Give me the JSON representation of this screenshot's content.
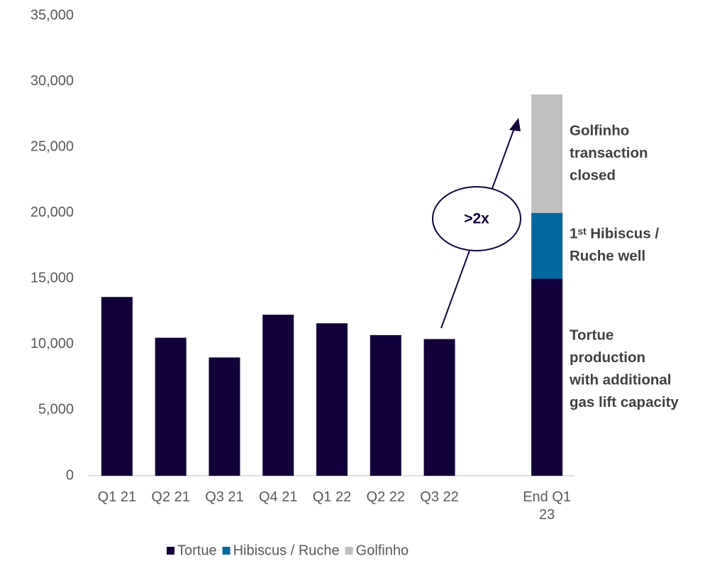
{
  "chart_data": {
    "type": "bar",
    "stacked": true,
    "categories": [
      "Q1 21",
      "Q2 21",
      "Q3 21",
      "Q4 21",
      "Q1 22",
      "Q2 22",
      "Q3 22",
      null,
      "End Q1 23"
    ],
    "series": [
      {
        "name": "Tortue",
        "color": "#12003b",
        "values": [
          13600,
          10500,
          9000,
          12250,
          11600,
          10700,
          10400,
          null,
          15000
        ]
      },
      {
        "name": "Hibiscus / Ruche",
        "color": "#00689f",
        "values": [
          null,
          null,
          null,
          null,
          null,
          null,
          null,
          null,
          5000
        ]
      },
      {
        "name": "Golfinho",
        "color": "#bfbfbf",
        "values": [
          null,
          null,
          null,
          null,
          null,
          null,
          null,
          null,
          9000
        ]
      }
    ],
    "ylim": [
      0,
      35000
    ],
    "yticks": [
      0,
      {
        "value": 5000,
        "label": "5,000"
      },
      {
        "value": 10000,
        "label": "10,000"
      },
      {
        "value": 15000,
        "label": "15,000"
      },
      {
        "value": 20000,
        "label": "20,000"
      },
      {
        "value": 25000,
        "label": "25,000"
      },
      {
        "value": 30000,
        "label": "30,000"
      },
      {
        "value": 35000,
        "label": "35,000"
      }
    ],
    "grid": false,
    "legend": "bottom",
    "annotations": [
      {
        "series": 2,
        "lines": [
          "Golfinho",
          "transaction",
          "closed"
        ]
      },
      {
        "series": 1,
        "lines": [
          "1ˢᵗ Hibiscus /",
          "Ruche well"
        ]
      },
      {
        "series": 0,
        "lines": [
          "Tortue",
          "production",
          "with additional",
          "gas lift capacity"
        ]
      }
    ],
    "callout": ">2x"
  }
}
